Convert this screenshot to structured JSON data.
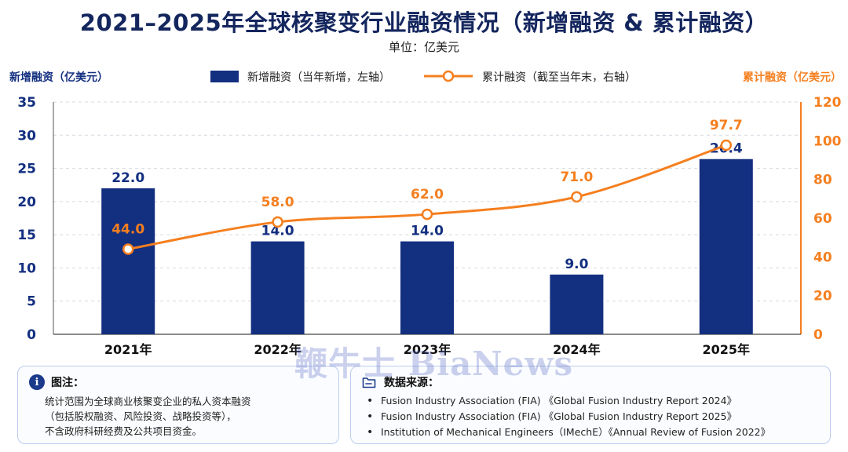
{
  "title": "2021–2025年全球核聚变行业融资情况（新增融资 & 累计融资）",
  "unit": "单位：亿美元",
  "watermark": "鞭牛士 BiaNews",
  "colors": {
    "bar": "#132f80",
    "line": "#f57f1f",
    "title": "#14265e",
    "panel_border": "#b9cdee"
  },
  "chart_data": {
    "type": "bar+line",
    "categories": [
      "2021年",
      "2022年",
      "2023年",
      "2024年",
      "2025年"
    ],
    "y_left": {
      "label": "新增融资（亿美元）",
      "range": [
        0,
        35
      ],
      "ticks": [
        0,
        5,
        10,
        15,
        20,
        25,
        30,
        35
      ]
    },
    "y_right": {
      "label": "累计融资（亿美元）",
      "range": [
        0,
        120
      ],
      "ticks": [
        0,
        20,
        40,
        60,
        80,
        100,
        120
      ]
    },
    "series": [
      {
        "name": "新增融资（当年新增，左轴）",
        "type": "bar",
        "axis": "left",
        "values": [
          22.0,
          14.0,
          14.0,
          9.0,
          26.4
        ],
        "labels": [
          "22.0",
          "14.0",
          "14.0",
          "9.0",
          "26.4"
        ]
      },
      {
        "name": "累计融资（截至当年末，右轴）",
        "type": "line",
        "axis": "right",
        "values": [
          44.0,
          58.0,
          62.0,
          71.0,
          97.7
        ],
        "labels": [
          "44.0",
          "58.0",
          "62.0",
          "71.0",
          "97.7"
        ]
      }
    ],
    "grid": "horizontal-dashed",
    "legend_position": "top-center"
  },
  "notes": {
    "icon": "info-icon",
    "title": "图注：",
    "lines": [
      "统计范围为全球商业核聚变企业的私人资本融资",
      "（包括股权融资、风险投资、战略投资等），",
      "不含政府科研经费及公共项目资金。"
    ]
  },
  "sources": {
    "icon": "folder-icon",
    "title": "数据来源：",
    "items": [
      "Fusion Industry Association (FIA) 《Global Fusion Industry Report 2024》",
      "Fusion Industry Association (FIA) 《Global Fusion Industry Report 2025》",
      "Institution of Mechanical Engineers（IMechE）《Annual Review of Fusion 2022》"
    ]
  }
}
